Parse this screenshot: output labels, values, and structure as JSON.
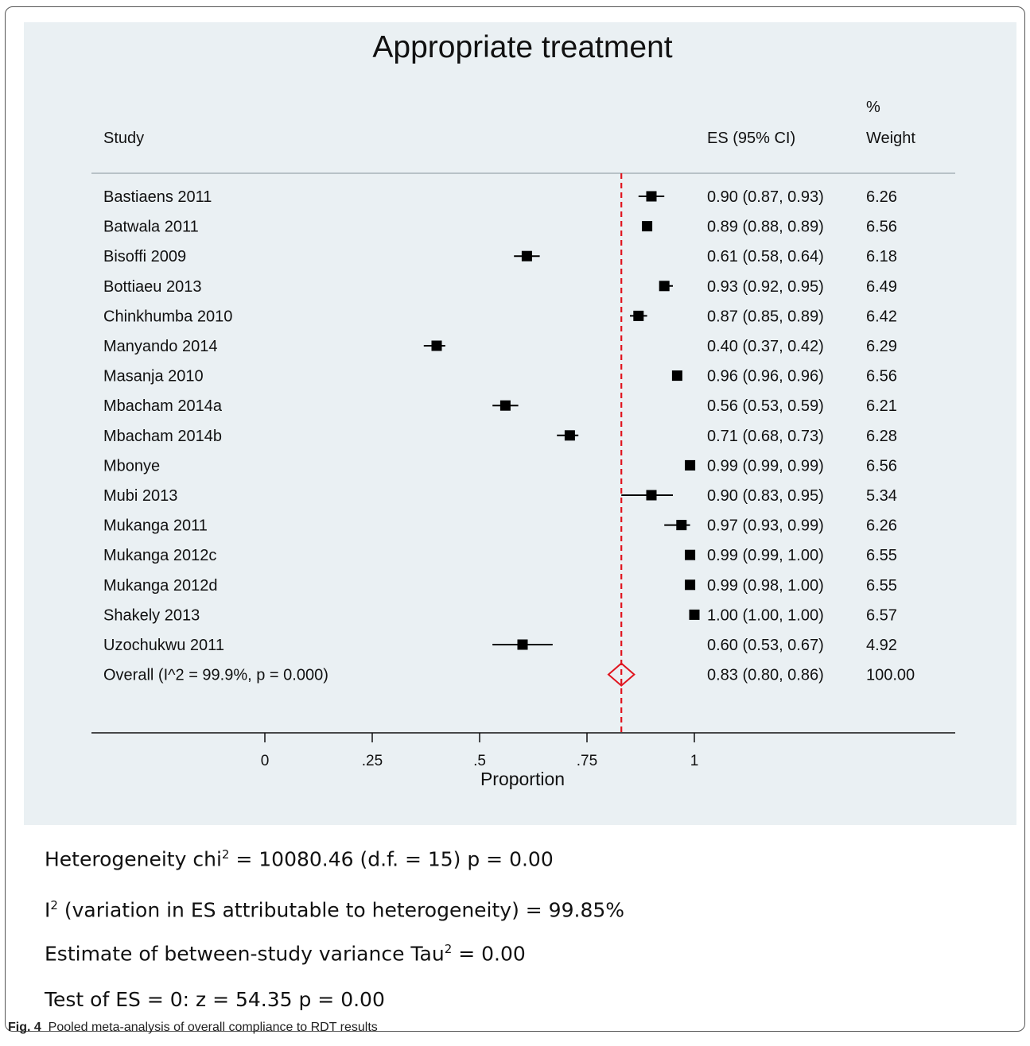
{
  "chart_data": {
    "type": "forest",
    "title": "Appropriate treatment",
    "xlabel": "Proportion",
    "xlim": [
      0,
      1
    ],
    "xticks": [
      "0",
      ".25",
      ".5",
      ".75",
      "1"
    ],
    "overall_line": 0.83,
    "headers": {
      "study": "Study",
      "es": "ES (95% CI)",
      "weight_top": "%",
      "weight_bottom": "Weight"
    },
    "studies": [
      {
        "name": "Bastiaens 2011",
        "es": 0.9,
        "lo": 0.87,
        "hi": 0.93,
        "label": "0.90 (0.87, 0.93)",
        "weight": "6.26"
      },
      {
        "name": "Batwala 2011",
        "es": 0.89,
        "lo": 0.88,
        "hi": 0.89,
        "label": "0.89 (0.88, 0.89)",
        "weight": "6.56"
      },
      {
        "name": "Bisoffi 2009",
        "es": 0.61,
        "lo": 0.58,
        "hi": 0.64,
        "label": "0.61 (0.58, 0.64)",
        "weight": "6.18"
      },
      {
        "name": "Bottiaeu 2013",
        "es": 0.93,
        "lo": 0.92,
        "hi": 0.95,
        "label": "0.93 (0.92, 0.95)",
        "weight": "6.49"
      },
      {
        "name": "Chinkhumba 2010",
        "es": 0.87,
        "lo": 0.85,
        "hi": 0.89,
        "label": "0.87 (0.85, 0.89)",
        "weight": "6.42"
      },
      {
        "name": "Manyando 2014",
        "es": 0.4,
        "lo": 0.37,
        "hi": 0.42,
        "label": "0.40 (0.37, 0.42)",
        "weight": "6.29"
      },
      {
        "name": "Masanja 2010",
        "es": 0.96,
        "lo": 0.96,
        "hi": 0.96,
        "label": "0.96 (0.96, 0.96)",
        "weight": "6.56"
      },
      {
        "name": "Mbacham 2014a",
        "es": 0.56,
        "lo": 0.53,
        "hi": 0.59,
        "label": "0.56 (0.53, 0.59)",
        "weight": "6.21"
      },
      {
        "name": "Mbacham 2014b",
        "es": 0.71,
        "lo": 0.68,
        "hi": 0.73,
        "label": "0.71 (0.68, 0.73)",
        "weight": "6.28"
      },
      {
        "name": "Mbonye",
        "es": 0.99,
        "lo": 0.99,
        "hi": 0.99,
        "label": "0.99 (0.99, 0.99)",
        "weight": "6.56"
      },
      {
        "name": "Mubi 2013",
        "es": 0.9,
        "lo": 0.83,
        "hi": 0.95,
        "label": "0.90 (0.83, 0.95)",
        "weight": "5.34"
      },
      {
        "name": "Mukanga 2011",
        "es": 0.97,
        "lo": 0.93,
        "hi": 0.99,
        "label": "0.97 (0.93, 0.99)",
        "weight": "6.26"
      },
      {
        "name": "Mukanga 2012c",
        "es": 0.99,
        "lo": 0.99,
        "hi": 1.0,
        "label": "0.99 (0.99, 1.00)",
        "weight": "6.55"
      },
      {
        "name": "Mukanga 2012d",
        "es": 0.99,
        "lo": 0.98,
        "hi": 1.0,
        "label": "0.99 (0.98, 1.00)",
        "weight": "6.55"
      },
      {
        "name": "Shakely 2013",
        "es": 1.0,
        "lo": 1.0,
        "hi": 1.0,
        "label": "1.00 (1.00, 1.00)",
        "weight": "6.57"
      },
      {
        "name": "Uzochukwu 2011",
        "es": 0.6,
        "lo": 0.53,
        "hi": 0.67,
        "label": "0.60 (0.53, 0.67)",
        "weight": "4.92"
      }
    ],
    "overall": {
      "name": "Overall  (I^2 = 99.9%, p = 0.000)",
      "es": 0.83,
      "lo": 0.8,
      "hi": 0.86,
      "label": "0.83 (0.80, 0.86)",
      "weight": "100.00"
    },
    "colors": {
      "panel": "#eaf0f3",
      "marker": "#000000",
      "overall": "#e0141e"
    }
  },
  "stats": {
    "line1_a": "Heterogeneity chi",
    "line1_sup": "2",
    "line1_b": " = 10080.46 (d.f. = 15) p = 0.00",
    "line2_a": "I",
    "line2_sup": "2",
    "line2_b": " (variation in ES attributable to heterogeneity) = 99.85%",
    "line3_a": "Estimate of between-study variance Tau",
    "line3_sup": "2",
    "line3_b": " = 0.00",
    "line4": "Test of ES = 0: z = 54.35 p = 0.00"
  },
  "caption": {
    "label": "Fig. 4",
    "text": "Pooled meta-analysis of overall compliance to RDT results"
  }
}
